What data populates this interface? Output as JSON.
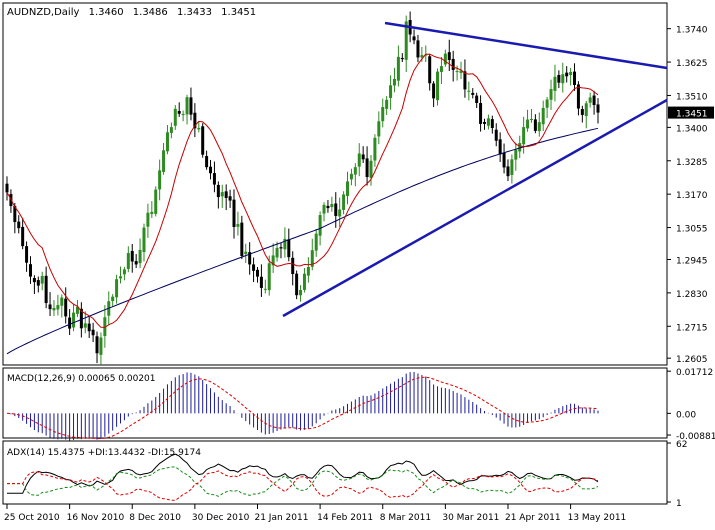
{
  "colors": {
    "background": "#ffffff",
    "frame": "#000000",
    "bull_candle": "#2e8b22",
    "bear_candle": "#000000",
    "sma_fast": "#c80000",
    "sma_slow": "#000060",
    "trendline": "#1a1ab0",
    "macd_hist": "#1a1aa0",
    "macd_signal": "#e00000",
    "adx_line": "#000000",
    "plus_di": "#1a8c1a",
    "minus_di": "#e00000",
    "last_price_bg": "#000000",
    "last_price_fg": "#ffffff"
  },
  "header": {
    "symbol": "AUDNZD",
    "timeframe": "Daily",
    "open": "1.3460",
    "high": "1.3486",
    "low": "1.3433",
    "close": "1.3451"
  },
  "last_price_label": "1.3451",
  "chart_data": [
    {
      "type": "candlestick",
      "title": "AUDNZD,Daily",
      "x_tick_labels": [
        "25 Oct 2010",
        "16 Nov 2010",
        "8 Dec 2010",
        "30 Dec 2010",
        "21 Jan 2011",
        "14 Feb 2011",
        "8 Mar 2011",
        "30 Mar 2011",
        "21 Apr 2011",
        "13 May 2011"
      ],
      "y_tick_labels": [
        "1.3740",
        "1.3625",
        "1.3510",
        "1.3400",
        "1.3285",
        "1.3170",
        "1.3055",
        "1.2945",
        "1.2830",
        "1.2715",
        "1.2605"
      ],
      "y_range": [
        1.2585,
        1.3825
      ],
      "grid": false,
      "series_close": [
        1.3176,
        1.3129,
        1.3074,
        1.3053,
        1.2991,
        1.2934,
        1.2886,
        1.2867,
        1.2855,
        1.2888,
        1.2795,
        1.2774,
        1.2778,
        1.2788,
        1.2814,
        1.2749,
        1.2707,
        1.2762,
        1.2782,
        1.2708,
        1.2725,
        1.2698,
        1.2684,
        1.2622,
        1.2676,
        1.2746,
        1.2801,
        1.2817,
        1.2877,
        1.2887,
        1.2911,
        1.2967,
        1.2938,
        1.2928,
        1.2978,
        1.3055,
        1.3106,
        1.3109,
        1.3186,
        1.3252,
        1.3321,
        1.3383,
        1.3401,
        1.3464,
        1.3447,
        1.3446,
        1.3504,
        1.3444,
        1.3397,
        1.3398,
        1.3306,
        1.3263,
        1.3242,
        1.3203,
        1.316,
        1.3177,
        1.3157,
        1.3148,
        1.3057,
        1.3067,
        1.2957,
        1.2972,
        1.2928,
        1.2906,
        1.2886,
        1.2847,
        1.2844,
        1.2932,
        1.2959,
        1.2985,
        1.2983,
        1.3016,
        1.2953,
        1.2895,
        1.2822,
        1.284,
        1.2896,
        1.2919,
        1.2977,
        1.3034,
        1.3098,
        1.3133,
        1.3122,
        1.3136,
        1.3095,
        1.3117,
        1.3169,
        1.3214,
        1.324,
        1.3263,
        1.331,
        1.329,
        1.3229,
        1.3285,
        1.3364,
        1.3421,
        1.347,
        1.3495,
        1.3545,
        1.3567,
        1.3643,
        1.3635,
        1.3765,
        1.372,
        1.37,
        1.3641,
        1.3649,
        1.3651,
        1.3552,
        1.35,
        1.3592,
        1.3611,
        1.3654,
        1.3632,
        1.3598,
        1.3594,
        1.3596,
        1.3531,
        1.3526,
        1.3512,
        1.3484,
        1.3412,
        1.3412,
        1.3431,
        1.3398,
        1.3354,
        1.3307,
        1.3262,
        1.3232,
        1.329,
        1.3323,
        1.3346,
        1.3401,
        1.3427,
        1.3429,
        1.3388,
        1.3418,
        1.3467,
        1.3496,
        1.3532,
        1.3574,
        1.3554,
        1.3583,
        1.3576,
        1.3591,
        1.3546,
        1.3465,
        1.3443,
        1.3483,
        1.3503,
        1.3477,
        1.3451
      ],
      "indicators": [
        "SMA fast",
        "SMA 200",
        "trendline resistance",
        "trendline support"
      ]
    },
    {
      "type": "bar",
      "title": "MACD(12,26,9) 0.00065 0.00201",
      "y_tick_labels": [
        "0.01712",
        "0.00",
        "-0.00881"
      ],
      "y_range": [
        -0.0092,
        0.0176
      ],
      "zero_line": 0.0
    },
    {
      "type": "line",
      "title": "ADX(14) 15.4375 +DI:13.4432 -DI:15.9174",
      "y_tick_labels": [
        "62",
        "1"
      ],
      "y_range": [
        1,
        62
      ]
    }
  ],
  "macd_header": "MACD(12,26,9) 0.00065 0.00201",
  "adx_header": "ADX(14) 15.4375 +DI:13.4432 -DI:15.9174"
}
